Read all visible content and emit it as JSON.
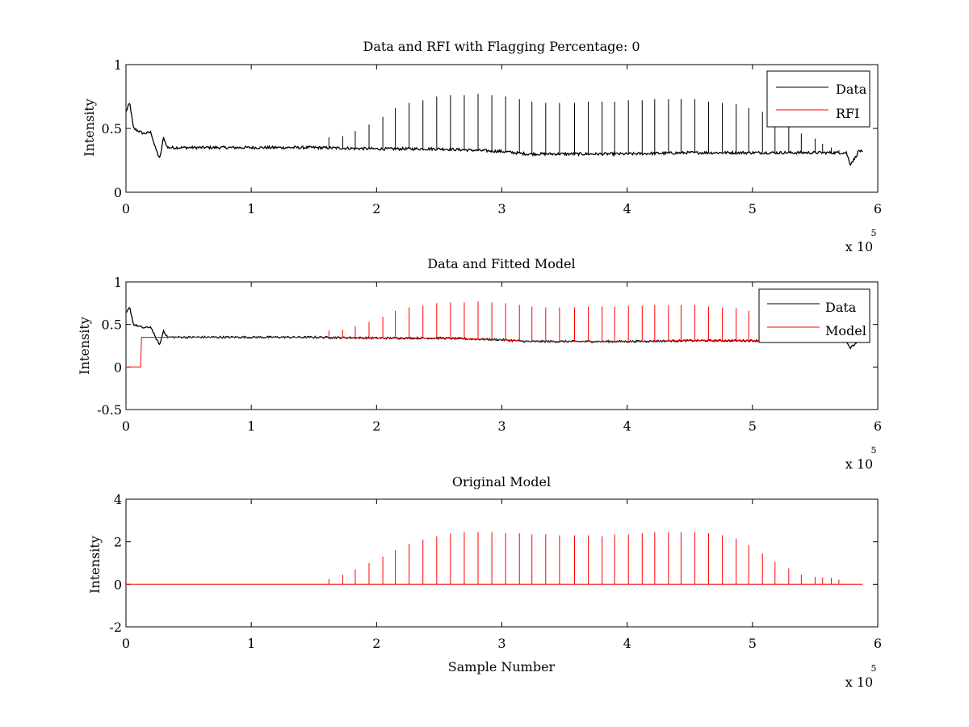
{
  "chart_data": [
    {
      "type": "line",
      "title": "Data and RFI with Flagging Percentage: 0",
      "xlabel": "",
      "ylabel": "Intensity",
      "xlim": [
        0,
        600000
      ],
      "ylim": [
        0,
        1
      ],
      "xticks": [
        0,
        1,
        2,
        3,
        4,
        5,
        6
      ],
      "xtick_labels": [
        "0",
        "1",
        "2",
        "3",
        "4",
        "5",
        "6"
      ],
      "xscale_label": "x 10",
      "xscale_exponent": "5",
      "yticks": [
        0,
        0.5,
        1
      ],
      "ytick_labels": [
        "0",
        "0.5",
        "1"
      ],
      "legend": {
        "position": "top-right",
        "entries": [
          "Data",
          "RFI"
        ]
      },
      "series": [
        {
          "name": "Data",
          "color": "#000000",
          "baseline": [
            [
              0,
              0.63
            ],
            [
              3000,
              0.7
            ],
            [
              6000,
              0.5
            ],
            [
              14000,
              0.46
            ],
            [
              20000,
              0.47
            ],
            [
              23000,
              0.36
            ],
            [
              27000,
              0.26
            ],
            [
              30000,
              0.43
            ],
            [
              33000,
              0.35
            ],
            [
              100000,
              0.35
            ],
            [
              150000,
              0.35
            ],
            [
              200000,
              0.34
            ],
            [
              250000,
              0.34
            ],
            [
              300000,
              0.32
            ],
            [
              320000,
              0.3
            ],
            [
              350000,
              0.3
            ],
            [
              400000,
              0.3
            ],
            [
              450000,
              0.31
            ],
            [
              500000,
              0.31
            ],
            [
              560000,
              0.31
            ],
            [
              575000,
              0.31
            ],
            [
              578000,
              0.22
            ],
            [
              582000,
              0.27
            ],
            [
              585000,
              0.33
            ],
            [
              588000,
              0.31
            ]
          ],
          "spikes": [
            [
              162000,
              0.43
            ],
            [
              173000,
              0.44
            ],
            [
              183000,
              0.48
            ],
            [
              194000,
              0.53
            ],
            [
              205000,
              0.59
            ],
            [
              215000,
              0.66
            ],
            [
              226000,
              0.7
            ],
            [
              237000,
              0.72
            ],
            [
              248000,
              0.75
            ],
            [
              259000,
              0.76
            ],
            [
              270000,
              0.76
            ],
            [
              281000,
              0.77
            ],
            [
              292000,
              0.76
            ],
            [
              303000,
              0.75
            ],
            [
              314000,
              0.73
            ],
            [
              324000,
              0.71
            ],
            [
              335000,
              0.7
            ],
            [
              346000,
              0.7
            ],
            [
              358000,
              0.7
            ],
            [
              369000,
              0.71
            ],
            [
              380000,
              0.71
            ],
            [
              390000,
              0.71
            ],
            [
              401000,
              0.72
            ],
            [
              412000,
              0.72
            ],
            [
              422000,
              0.73
            ],
            [
              433000,
              0.73
            ],
            [
              443000,
              0.73
            ],
            [
              454000,
              0.73
            ],
            [
              465000,
              0.71
            ],
            [
              476000,
              0.7
            ],
            [
              487000,
              0.69
            ],
            [
              497000,
              0.66
            ],
            [
              508000,
              0.63
            ],
            [
              518000,
              0.57
            ],
            [
              529000,
              0.54
            ],
            [
              539000,
              0.46
            ],
            [
              550000,
              0.42
            ],
            [
              556000,
              0.38
            ],
            [
              563000,
              0.35
            ],
            [
              569000,
              0.33
            ]
          ]
        },
        {
          "name": "RFI",
          "color": "#ff0000"
        }
      ]
    },
    {
      "type": "line",
      "title": "Data and Fitted Model",
      "xlabel": "",
      "ylabel": "Intensity",
      "xlim": [
        0,
        600000
      ],
      "ylim": [
        -0.5,
        1
      ],
      "xticks": [
        0,
        1,
        2,
        3,
        4,
        5,
        6
      ],
      "xtick_labels": [
        "0",
        "1",
        "2",
        "3",
        "4",
        "5",
        "6"
      ],
      "xscale_label": "x 10",
      "xscale_exponent": "5",
      "yticks": [
        -0.5,
        0,
        0.5,
        1
      ],
      "ytick_labels": [
        "-0.5",
        "0",
        "0.5",
        "1"
      ],
      "legend": {
        "position": "top-right",
        "entries": [
          "Data",
          "Model"
        ]
      },
      "series": [
        {
          "name": "Data",
          "color": "#000000",
          "baseline": [
            [
              0,
              0.63
            ],
            [
              3000,
              0.7
            ],
            [
              6000,
              0.5
            ],
            [
              14000,
              0.46
            ],
            [
              20000,
              0.47
            ],
            [
              23000,
              0.36
            ],
            [
              27000,
              0.26
            ],
            [
              30000,
              0.43
            ],
            [
              33000,
              0.35
            ],
            [
              100000,
              0.35
            ],
            [
              150000,
              0.35
            ],
            [
              200000,
              0.34
            ],
            [
              250000,
              0.34
            ],
            [
              300000,
              0.32
            ],
            [
              320000,
              0.3
            ],
            [
              350000,
              0.3
            ],
            [
              400000,
              0.3
            ],
            [
              450000,
              0.31
            ],
            [
              500000,
              0.31
            ],
            [
              560000,
              0.31
            ],
            [
              575000,
              0.31
            ],
            [
              578000,
              0.22
            ],
            [
              582000,
              0.27
            ],
            [
              585000,
              0.33
            ],
            [
              588000,
              0.31
            ]
          ]
        },
        {
          "name": "Model",
          "color": "#ff0000",
          "baseline": [
            [
              0,
              0.0
            ],
            [
              12000,
              0.0
            ],
            [
              12000,
              0.35
            ],
            [
              100000,
              0.35
            ],
            [
              150000,
              0.35
            ],
            [
              200000,
              0.34
            ],
            [
              250000,
              0.34
            ],
            [
              300000,
              0.32
            ],
            [
              320000,
              0.3
            ],
            [
              350000,
              0.3
            ],
            [
              400000,
              0.3
            ],
            [
              450000,
              0.31
            ],
            [
              500000,
              0.31
            ],
            [
              560000,
              0.31
            ],
            [
              588000,
              0.31
            ]
          ],
          "spikes": [
            [
              162000,
              0.43
            ],
            [
              173000,
              0.44
            ],
            [
              183000,
              0.48
            ],
            [
              194000,
              0.53
            ],
            [
              205000,
              0.59
            ],
            [
              215000,
              0.66
            ],
            [
              226000,
              0.7
            ],
            [
              237000,
              0.72
            ],
            [
              248000,
              0.75
            ],
            [
              259000,
              0.76
            ],
            [
              270000,
              0.76
            ],
            [
              281000,
              0.77
            ],
            [
              292000,
              0.76
            ],
            [
              303000,
              0.75
            ],
            [
              314000,
              0.73
            ],
            [
              324000,
              0.71
            ],
            [
              335000,
              0.7
            ],
            [
              346000,
              0.7
            ],
            [
              358000,
              0.7
            ],
            [
              369000,
              0.71
            ],
            [
              380000,
              0.71
            ],
            [
              390000,
              0.71
            ],
            [
              401000,
              0.72
            ],
            [
              412000,
              0.72
            ],
            [
              422000,
              0.73
            ],
            [
              433000,
              0.73
            ],
            [
              443000,
              0.73
            ],
            [
              454000,
              0.73
            ],
            [
              465000,
              0.71
            ],
            [
              476000,
              0.7
            ],
            [
              487000,
              0.69
            ],
            [
              497000,
              0.66
            ],
            [
              508000,
              0.63
            ],
            [
              518000,
              0.57
            ],
            [
              529000,
              0.54
            ],
            [
              539000,
              0.46
            ],
            [
              550000,
              0.42
            ],
            [
              556000,
              0.38
            ],
            [
              563000,
              0.35
            ],
            [
              569000,
              0.33
            ]
          ]
        }
      ]
    },
    {
      "type": "line",
      "title": "Original Model",
      "xlabel": "Sample Number",
      "ylabel": "Intensity",
      "xlim": [
        0,
        600000
      ],
      "ylim": [
        -2,
        4
      ],
      "xticks": [
        0,
        1,
        2,
        3,
        4,
        5,
        6
      ],
      "xtick_labels": [
        "0",
        "1",
        "2",
        "3",
        "4",
        "5",
        "6"
      ],
      "xscale_label": "x 10",
      "xscale_exponent": "5",
      "yticks": [
        -2,
        0,
        2,
        4
      ],
      "ytick_labels": [
        "-2",
        "0",
        "2",
        "4"
      ],
      "series": [
        {
          "color": "#ff0000",
          "baseline": [
            [
              0,
              0.0
            ],
            [
              588000,
              0.0
            ]
          ],
          "spikes": [
            [
              162000,
              0.25
            ],
            [
              173000,
              0.45
            ],
            [
              183000,
              0.7
            ],
            [
              194000,
              1.0
            ],
            [
              205000,
              1.3
            ],
            [
              215000,
              1.6
            ],
            [
              226000,
              1.9
            ],
            [
              237000,
              2.1
            ],
            [
              248000,
              2.25
            ],
            [
              259000,
              2.4
            ],
            [
              270000,
              2.45
            ],
            [
              281000,
              2.45
            ],
            [
              292000,
              2.45
            ],
            [
              303000,
              2.4
            ],
            [
              314000,
              2.4
            ],
            [
              324000,
              2.35
            ],
            [
              335000,
              2.35
            ],
            [
              346000,
              2.3
            ],
            [
              358000,
              2.3
            ],
            [
              369000,
              2.3
            ],
            [
              380000,
              2.25
            ],
            [
              390000,
              2.35
            ],
            [
              401000,
              2.35
            ],
            [
              412000,
              2.4
            ],
            [
              422000,
              2.45
            ],
            [
              433000,
              2.45
            ],
            [
              443000,
              2.45
            ],
            [
              454000,
              2.45
            ],
            [
              465000,
              2.4
            ],
            [
              476000,
              2.3
            ],
            [
              487000,
              2.15
            ],
            [
              497000,
              1.85
            ],
            [
              508000,
              1.45
            ],
            [
              518000,
              1.05
            ],
            [
              529000,
              0.75
            ],
            [
              539000,
              0.45
            ],
            [
              550000,
              0.35
            ],
            [
              556000,
              0.32
            ],
            [
              563000,
              0.3
            ],
            [
              569000,
              0.22
            ]
          ]
        }
      ]
    }
  ]
}
